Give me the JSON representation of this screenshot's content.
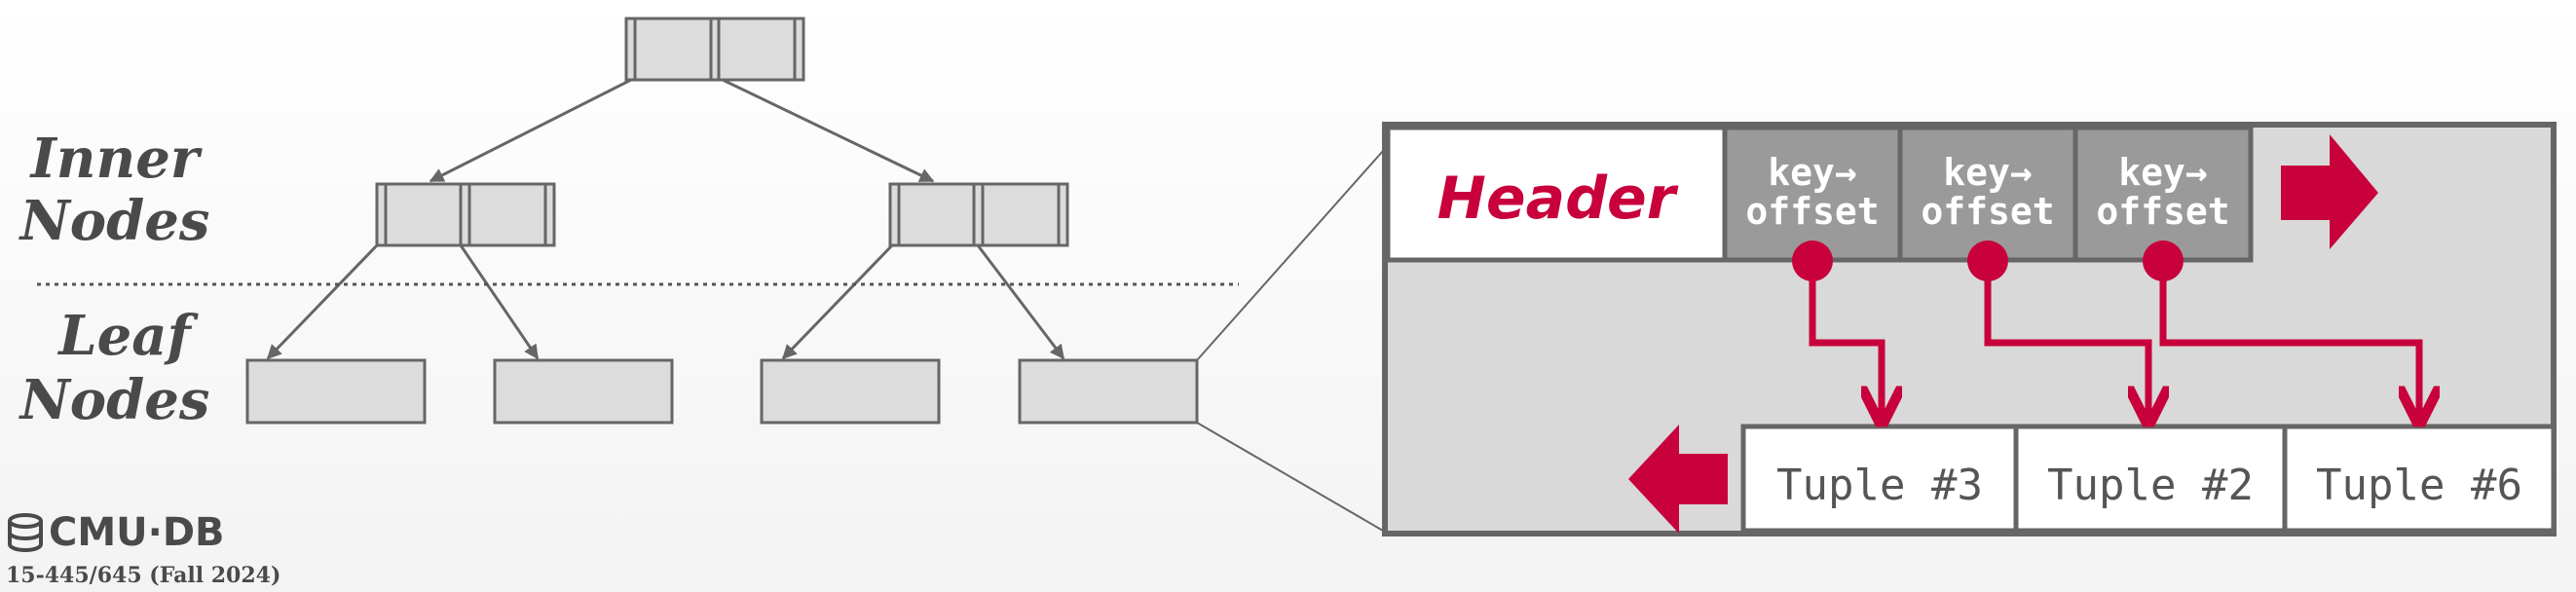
{
  "labels": {
    "inner_line1": "Inner",
    "inner_line2": "Nodes",
    "leaf_line1": "Leaf",
    "leaf_line2": "Nodes"
  },
  "page": {
    "header_label": "Header",
    "slots": [
      {
        "line1": "key→",
        "line2": "offset"
      },
      {
        "line1": "key→",
        "line2": "offset"
      },
      {
        "line1": "key→",
        "line2": "offset"
      }
    ],
    "tuples": [
      "Tuple #3",
      "Tuple #2",
      "Tuple #6"
    ]
  },
  "footer": {
    "logo_text": "CMU·DB",
    "course": "15-445/645 (Fall 2024)"
  },
  "colors": {
    "accent": "#c8003c",
    "node_fill": "#dcdcdc",
    "stroke": "#666666",
    "slot_fill": "#9a9a9a",
    "page_bg": "#d9d9d9"
  }
}
